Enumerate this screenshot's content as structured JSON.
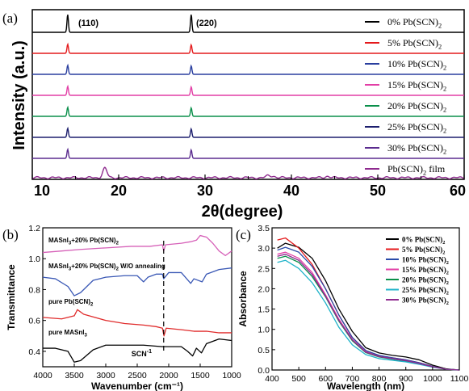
{
  "chart_data": [
    {
      "panel": "(a)",
      "type": "line",
      "xlabel": "2θ(degree)",
      "ylabel": "Intensity (a.u.)",
      "xlim": [
        10,
        60
      ],
      "xticks": [
        "10",
        "20",
        "30",
        "40",
        "50",
        "60"
      ],
      "annotations": [
        "(110)",
        "(220)"
      ],
      "peaks_deg": [
        14.1,
        28.4
      ],
      "legend_position": "right",
      "series": [
        {
          "name": "0% Pb(SCN)",
          "sub": "2",
          "color": "#000000",
          "peaks": [
            {
              "x": 14.1,
              "h": 1.0
            },
            {
              "x": 28.4,
              "h": 1.0
            }
          ]
        },
        {
          "name": "5% Pb(SCN)",
          "sub": "2",
          "color": "#e41a1c",
          "peaks": [
            {
              "x": 14.1,
              "h": 0.8
            },
            {
              "x": 28.4,
              "h": 0.75
            }
          ]
        },
        {
          "name": "10% Pb(SCN)",
          "sub": "2",
          "color": "#2a3f9f",
          "peaks": [
            {
              "x": 14.1,
              "h": 0.8
            },
            {
              "x": 28.4,
              "h": 0.75
            }
          ]
        },
        {
          "name": "15% Pb(SCN)",
          "sub": "2",
          "color": "#e23fa6",
          "peaks": [
            {
              "x": 14.1,
              "h": 0.8
            },
            {
              "x": 28.4,
              "h": 0.75
            }
          ]
        },
        {
          "name": "20% Pb(SCN)",
          "sub": "2",
          "color": "#0a8f4a",
          "peaks": [
            {
              "x": 14.1,
              "h": 0.8
            },
            {
              "x": 28.4,
              "h": 0.75
            }
          ]
        },
        {
          "name": "25% Pb(SCN)",
          "sub": "2",
          "color": "#1d1f6e",
          "peaks": [
            {
              "x": 14.1,
              "h": 0.8
            },
            {
              "x": 28.4,
              "h": 0.75
            }
          ]
        },
        {
          "name": "30% Pb(SCN)",
          "sub": "2",
          "color": "#5b2c8f",
          "peaks": [
            {
              "x": 14.1,
              "h": 0.8
            },
            {
              "x": 28.4,
              "h": 0.75
            }
          ]
        },
        {
          "name": "Pb(SCN)",
          "sub": "2",
          "suffix": " film",
          "color": "#8e2a8e",
          "peaks": [
            {
              "x": 18.4,
              "h": 0.6
            },
            {
              "x": 37.3,
              "h": 0.12
            },
            {
              "x": 37.9,
              "h": 0.1
            },
            {
              "x": 44.2,
              "h": 0.1
            }
          ]
        }
      ]
    },
    {
      "panel": "(b)",
      "type": "line",
      "xlabel": "Wavenumber (cm⁻¹)",
      "ylabel": "Transmittance",
      "xlim": [
        4000,
        1000
      ],
      "xticks": [
        "4000",
        "3500",
        "3000",
        "2500",
        "2000",
        "1500",
        "1000"
      ],
      "ylim": [
        0.3,
        1.2
      ],
      "yticks": [
        "0.4",
        "0.6",
        "0.8",
        "1.0",
        "1.2"
      ],
      "annotation_scn": "SCN",
      "annotation_scn_sup": "-1",
      "dashed_line_x": 2080,
      "series": [
        {
          "name": "MASnI3+20% Pb(SCN)2",
          "label_parts": [
            "MASnI",
            "3",
            "+20% Pb(SCN)",
            "2"
          ],
          "color": "#d660b8",
          "points": [
            [
              4000,
              1.04
            ],
            [
              3700,
              1.05
            ],
            [
              3400,
              1.06
            ],
            [
              3000,
              1.07
            ],
            [
              2600,
              1.08
            ],
            [
              2300,
              1.08
            ],
            [
              2100,
              1.09
            ],
            [
              2080,
              1.05
            ],
            [
              2050,
              1.09
            ],
            [
              1800,
              1.1
            ],
            [
              1650,
              1.11
            ],
            [
              1560,
              1.12
            ],
            [
              1500,
              1.15
            ],
            [
              1400,
              1.14
            ],
            [
              1300,
              1.1
            ],
            [
              1200,
              1.05
            ],
            [
              1100,
              1.02
            ],
            [
              1000,
              1.05
            ]
          ]
        },
        {
          "name": "MASnI3+20% Pb(SCN)2 W/O annealing",
          "label_parts": [
            "MASnI",
            "3",
            "+20% Pb(SCN)",
            "2",
            " W/O annealing"
          ],
          "color": "#3a58b5",
          "points": [
            [
              4000,
              0.88
            ],
            [
              3800,
              0.87
            ],
            [
              3600,
              0.82
            ],
            [
              3500,
              0.76
            ],
            [
              3400,
              0.78
            ],
            [
              3200,
              0.86
            ],
            [
              3000,
              0.88
            ],
            [
              2700,
              0.89
            ],
            [
              2500,
              0.89
            ],
            [
              2400,
              0.85
            ],
            [
              2330,
              0.88
            ],
            [
              2200,
              0.9
            ],
            [
              2100,
              0.9
            ],
            [
              2080,
              0.87
            ],
            [
              2000,
              0.91
            ],
            [
              1800,
              0.91
            ],
            [
              1650,
              0.84
            ],
            [
              1600,
              0.87
            ],
            [
              1470,
              0.85
            ],
            [
              1400,
              0.9
            ],
            [
              1200,
              0.93
            ],
            [
              1000,
              0.94
            ]
          ]
        },
        {
          "name": "pure Pb(SCN)2",
          "label_parts": [
            "pure Pb(SCN)",
            "2"
          ],
          "color": "#e02c2c",
          "points": [
            [
              4000,
              0.62
            ],
            [
              3700,
              0.61
            ],
            [
              3500,
              0.63
            ],
            [
              3450,
              0.67
            ],
            [
              3350,
              0.64
            ],
            [
              3000,
              0.6
            ],
            [
              2700,
              0.58
            ],
            [
              2400,
              0.57
            ],
            [
              2200,
              0.56
            ],
            [
              2100,
              0.55
            ],
            [
              2075,
              0.5
            ],
            [
              2040,
              0.55
            ],
            [
              1800,
              0.54
            ],
            [
              1600,
              0.53
            ],
            [
              1400,
              0.53
            ],
            [
              1200,
              0.52
            ],
            [
              1000,
              0.52
            ]
          ]
        },
        {
          "name": "pure MASnI3",
          "label_parts": [
            "pure MASnI",
            "3"
          ],
          "color": "#000000",
          "points": [
            [
              4000,
              0.42
            ],
            [
              3800,
              0.42
            ],
            [
              3600,
              0.4
            ],
            [
              3500,
              0.33
            ],
            [
              3400,
              0.34
            ],
            [
              3200,
              0.41
            ],
            [
              3000,
              0.44
            ],
            [
              2700,
              0.44
            ],
            [
              2400,
              0.44
            ],
            [
              2100,
              0.43
            ],
            [
              1800,
              0.43
            ],
            [
              1700,
              0.4
            ],
            [
              1620,
              0.37
            ],
            [
              1560,
              0.42
            ],
            [
              1480,
              0.39
            ],
            [
              1400,
              0.45
            ],
            [
              1200,
              0.48
            ],
            [
              1000,
              0.47
            ]
          ]
        }
      ]
    },
    {
      "panel": "(c)",
      "type": "line",
      "xlabel": "Wavelength (nm)",
      "ylabel": "Absorbance",
      "xlim": [
        400,
        1100
      ],
      "xticks": [
        "400",
        "500",
        "600",
        "700",
        "800",
        "900",
        "1000",
        "1100"
      ],
      "ylim": [
        0,
        3.5
      ],
      "yticks": [
        "0.0",
        "0.5",
        "1.0",
        "1.5",
        "2.0",
        "2.5",
        "3.0",
        "3.5"
      ],
      "legend_position": "top-right",
      "series": [
        {
          "name": "0%  Pb(SCN)",
          "sub": "2",
          "color": "#000000",
          "points": [
            [
              420,
              3.0
            ],
            [
              450,
              3.12
            ],
            [
              500,
              3.02
            ],
            [
              550,
              2.75
            ],
            [
              600,
              2.2
            ],
            [
              650,
              1.5
            ],
            [
              700,
              0.95
            ],
            [
              750,
              0.55
            ],
            [
              800,
              0.42
            ],
            [
              850,
              0.36
            ],
            [
              900,
              0.32
            ],
            [
              950,
              0.25
            ],
            [
              1000,
              0.12
            ],
            [
              1050,
              0.03
            ],
            [
              1100,
              0.0
            ]
          ]
        },
        {
          "name": "5%  Pb(SCN)",
          "sub": "2",
          "color": "#e41a1c",
          "points": [
            [
              420,
              3.2
            ],
            [
              450,
              3.25
            ],
            [
              500,
              3.0
            ],
            [
              550,
              2.6
            ],
            [
              600,
              2.0
            ],
            [
              650,
              1.35
            ],
            [
              700,
              0.8
            ],
            [
              750,
              0.48
            ],
            [
              800,
              0.35
            ],
            [
              850,
              0.3
            ],
            [
              900,
              0.25
            ],
            [
              950,
              0.18
            ],
            [
              1000,
              0.09
            ],
            [
              1050,
              0.02
            ],
            [
              1100,
              0.0
            ]
          ]
        },
        {
          "name": "10% Pb(SCN)",
          "sub": "2",
          "color": "#2a4aa8",
          "points": [
            [
              420,
              2.95
            ],
            [
              450,
              3.02
            ],
            [
              500,
              2.9
            ],
            [
              550,
              2.55
            ],
            [
              600,
              2.0
            ],
            [
              650,
              1.35
            ],
            [
              700,
              0.8
            ],
            [
              750,
              0.48
            ],
            [
              800,
              0.36
            ],
            [
              850,
              0.3
            ],
            [
              900,
              0.25
            ],
            [
              950,
              0.18
            ],
            [
              1000,
              0.09
            ],
            [
              1050,
              0.02
            ],
            [
              1100,
              0.0
            ]
          ]
        },
        {
          "name": "15% Pb(SCN)",
          "sub": "2",
          "color": "#e23fa6",
          "points": [
            [
              420,
              2.85
            ],
            [
              450,
              2.9
            ],
            [
              500,
              2.75
            ],
            [
              550,
              2.4
            ],
            [
              600,
              1.85
            ],
            [
              650,
              1.25
            ],
            [
              700,
              0.75
            ],
            [
              750,
              0.45
            ],
            [
              800,
              0.33
            ],
            [
              850,
              0.28
            ],
            [
              900,
              0.23
            ],
            [
              950,
              0.16
            ],
            [
              1000,
              0.08
            ],
            [
              1050,
              0.02
            ],
            [
              1100,
              0.0
            ]
          ]
        },
        {
          "name": "20% Pb(SCN)",
          "sub": "2",
          "color": "#0a8f4a",
          "points": [
            [
              420,
              2.75
            ],
            [
              450,
              2.8
            ],
            [
              500,
              2.65
            ],
            [
              550,
              2.3
            ],
            [
              600,
              1.8
            ],
            [
              650,
              1.2
            ],
            [
              700,
              0.72
            ],
            [
              750,
              0.43
            ],
            [
              800,
              0.32
            ],
            [
              850,
              0.27
            ],
            [
              900,
              0.22
            ],
            [
              950,
              0.15
            ],
            [
              1000,
              0.08
            ],
            [
              1050,
              0.02
            ],
            [
              1100,
              0.0
            ]
          ]
        },
        {
          "name": "25% Pb(SCN)",
          "sub": "2",
          "color": "#1fb3c9",
          "points": [
            [
              420,
              2.65
            ],
            [
              450,
              2.7
            ],
            [
              500,
              2.5
            ],
            [
              550,
              2.15
            ],
            [
              600,
              1.65
            ],
            [
              650,
              1.05
            ],
            [
              700,
              0.62
            ],
            [
              750,
              0.38
            ],
            [
              800,
              0.28
            ],
            [
              850,
              0.24
            ],
            [
              900,
              0.2
            ],
            [
              950,
              0.14
            ],
            [
              1000,
              0.07
            ],
            [
              1050,
              0.02
            ],
            [
              1100,
              0.0
            ]
          ]
        },
        {
          "name": "30% Pb(SCN)",
          "sub": "2",
          "color": "#8e2a8e",
          "points": [
            [
              420,
              2.8
            ],
            [
              450,
              2.85
            ],
            [
              500,
              2.7
            ],
            [
              550,
              2.35
            ],
            [
              600,
              1.82
            ],
            [
              650,
              1.22
            ],
            [
              700,
              0.74
            ],
            [
              750,
              0.44
            ],
            [
              800,
              0.33
            ],
            [
              850,
              0.28
            ],
            [
              900,
              0.23
            ],
            [
              950,
              0.16
            ],
            [
              1000,
              0.08
            ],
            [
              1050,
              0.02
            ],
            [
              1100,
              0.0
            ]
          ]
        }
      ]
    }
  ]
}
